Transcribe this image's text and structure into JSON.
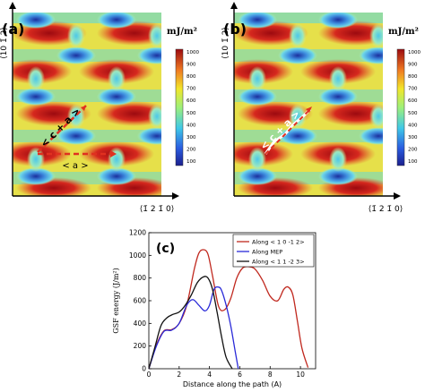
{
  "panels": {
    "a": {
      "label": "(a)",
      "y_axis_label": "⟨10 1̄ 2⟩",
      "x_axis_label": "⟨1̄ 2 1̄ 0⟩",
      "colorbar_unit": "mJ/m²",
      "annotations": {
        "c_plus_a": "< c + a >",
        "a_vec": "< a >"
      }
    },
    "b": {
      "label": "(b)",
      "y_axis_label": "⟨10 1̄ 2⟩",
      "x_axis_label": "⟨1̄ 2 1̄ 0⟩",
      "colorbar_unit": "mJ/m²",
      "annotations": {
        "c_plus_a": "< c + a >"
      }
    }
  },
  "colorbar_ticks": [
    "1000",
    "900",
    "800",
    "700",
    "600",
    "500",
    "400",
    "300",
    "200",
    "100"
  ],
  "colors": {
    "background_red": "#d6281e",
    "high": "#b00f14",
    "mid_yellow": "#f2e62a",
    "cyan": "#4dc8e8",
    "low": "#1b2f9e",
    "arrow_red": "#e03020",
    "annotation_white": "#ffffff"
  },
  "chart_data": {
    "type": "line",
    "label": "(c)",
    "xlabel": "Distance along the path (A)",
    "ylabel": "GSF energy (J/m²)",
    "xlim": [
      0,
      11
    ],
    "ylim": [
      0,
      1200
    ],
    "xticks": [
      "0",
      "2",
      "4",
      "6",
      "8",
      "10"
    ],
    "yticks": [
      "0",
      "200",
      "400",
      "600",
      "800",
      "1000",
      "1200"
    ],
    "legend_position": "top-right",
    "series": [
      {
        "name": "Along < 1 0 -1 2>",
        "color": "#c0281e",
        "x": [
          0,
          0.5,
          1.0,
          1.5,
          2.0,
          2.5,
          3.0,
          3.3,
          3.6,
          3.9,
          4.2,
          4.6,
          5.0,
          5.4,
          5.8,
          6.2,
          6.6,
          7.0,
          7.5,
          8.0,
          8.5,
          8.9,
          9.2,
          9.5,
          9.8,
          10.1,
          10.5
        ],
        "y": [
          0,
          210,
          335,
          345,
          400,
          560,
          880,
          1020,
          1050,
          1010,
          820,
          550,
          520,
          620,
          800,
          890,
          900,
          880,
          780,
          640,
          600,
          700,
          720,
          650,
          420,
          180,
          10
        ]
      },
      {
        "name": "Along MEP",
        "color": "#2a2ad8",
        "x": [
          0,
          0.5,
          1.0,
          1.5,
          2.0,
          2.5,
          2.9,
          3.3,
          3.7,
          4.0,
          4.3,
          4.6,
          4.8,
          5.1,
          5.4,
          5.7,
          5.9
        ],
        "y": [
          0,
          200,
          330,
          340,
          400,
          560,
          610,
          560,
          510,
          560,
          700,
          720,
          690,
          560,
          380,
          150,
          0
        ]
      },
      {
        "name": "Along < 1 1 -2 3>",
        "color": "#111111",
        "x": [
          0,
          0.4,
          0.8,
          1.2,
          1.6,
          2.0,
          2.4,
          2.8,
          3.2,
          3.6,
          3.9,
          4.2,
          4.5,
          4.8,
          5.1,
          5.5
        ],
        "y": [
          0,
          190,
          380,
          450,
          480,
          500,
          560,
          650,
          760,
          810,
          800,
          700,
          500,
          280,
          100,
          0
        ]
      }
    ]
  }
}
